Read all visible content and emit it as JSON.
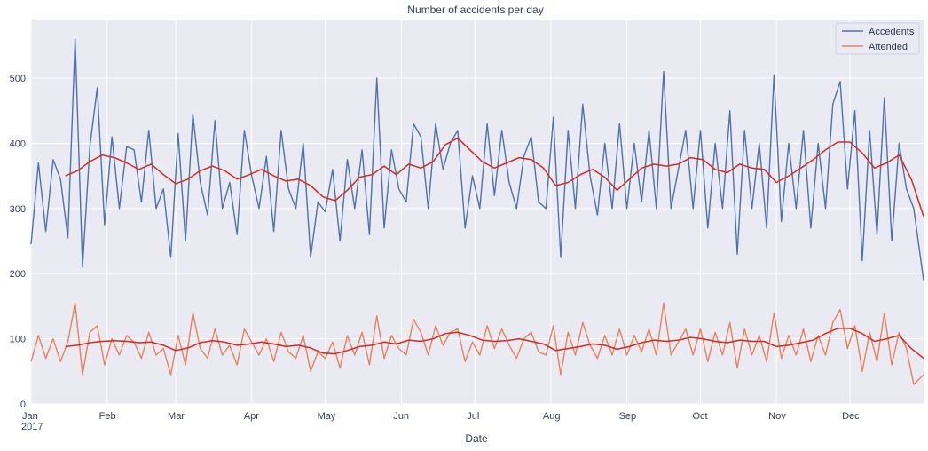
{
  "chart_data": {
    "type": "line",
    "title": "Number of accidents per day",
    "xlabel": "Date",
    "ylabel": "",
    "year_label": "2017",
    "x_tick_labels": [
      "Jan",
      "Feb",
      "Mar",
      "Apr",
      "May",
      "Jun",
      "Jul",
      "Aug",
      "Sep",
      "Oct",
      "Nov",
      "Dec"
    ],
    "x_range": [
      "2017-01-01",
      "2017-12-31"
    ],
    "ylim": [
      0,
      590
    ],
    "y_ticks": [
      0,
      100,
      200,
      300,
      400,
      500
    ],
    "grid": true,
    "legend_position": "top-right",
    "colors": {
      "background": "#eaeaf2",
      "grid": "#ffffff",
      "accidents": "#4c72b0",
      "attended": "#e8825e",
      "rolling": "#d62a1e"
    },
    "series": [
      {
        "name": "Accedents",
        "key": "accidents",
        "x": [
          "2017-01-01",
          "2017-01-04",
          "2017-01-07",
          "2017-01-10",
          "2017-01-13",
          "2017-01-16",
          "2017-01-19",
          "2017-01-22",
          "2017-01-25",
          "2017-01-28",
          "2017-01-31",
          "2017-02-03",
          "2017-02-06",
          "2017-02-09",
          "2017-02-12",
          "2017-02-15",
          "2017-02-18",
          "2017-02-21",
          "2017-02-24",
          "2017-02-27",
          "2017-03-02",
          "2017-03-05",
          "2017-03-08",
          "2017-03-11",
          "2017-03-14",
          "2017-03-17",
          "2017-03-20",
          "2017-03-23",
          "2017-03-26",
          "2017-03-29",
          "2017-04-01",
          "2017-04-04",
          "2017-04-07",
          "2017-04-10",
          "2017-04-13",
          "2017-04-16",
          "2017-04-19",
          "2017-04-22",
          "2017-04-25",
          "2017-04-28",
          "2017-05-01",
          "2017-05-04",
          "2017-05-07",
          "2017-05-10",
          "2017-05-13",
          "2017-05-16",
          "2017-05-19",
          "2017-05-22",
          "2017-05-25",
          "2017-05-28",
          "2017-05-31",
          "2017-06-03",
          "2017-06-06",
          "2017-06-09",
          "2017-06-12",
          "2017-06-15",
          "2017-06-18",
          "2017-06-21",
          "2017-06-24",
          "2017-06-27",
          "2017-06-30",
          "2017-07-03",
          "2017-07-06",
          "2017-07-09",
          "2017-07-12",
          "2017-07-15",
          "2017-07-18",
          "2017-07-21",
          "2017-07-24",
          "2017-07-27",
          "2017-07-30",
          "2017-08-02",
          "2017-08-05",
          "2017-08-08",
          "2017-08-11",
          "2017-08-14",
          "2017-08-17",
          "2017-08-20",
          "2017-08-23",
          "2017-08-26",
          "2017-08-29",
          "2017-09-01",
          "2017-09-04",
          "2017-09-07",
          "2017-09-10",
          "2017-09-13",
          "2017-09-16",
          "2017-09-19",
          "2017-09-22",
          "2017-09-25",
          "2017-09-28",
          "2017-10-01",
          "2017-10-04",
          "2017-10-07",
          "2017-10-10",
          "2017-10-13",
          "2017-10-16",
          "2017-10-19",
          "2017-10-22",
          "2017-10-25",
          "2017-10-28",
          "2017-10-31",
          "2017-11-03",
          "2017-11-06",
          "2017-11-09",
          "2017-11-12",
          "2017-11-15",
          "2017-11-18",
          "2017-11-21",
          "2017-11-24",
          "2017-11-27",
          "2017-11-30",
          "2017-12-03",
          "2017-12-06",
          "2017-12-09",
          "2017-12-12",
          "2017-12-15",
          "2017-12-18",
          "2017-12-21",
          "2017-12-24",
          "2017-12-27",
          "2017-12-31"
        ],
        "values": [
          245,
          370,
          265,
          375,
          345,
          255,
          560,
          210,
          395,
          485,
          275,
          410,
          300,
          395,
          390,
          310,
          420,
          300,
          330,
          225,
          415,
          250,
          445,
          340,
          290,
          435,
          300,
          340,
          260,
          420,
          350,
          300,
          380,
          265,
          420,
          330,
          300,
          400,
          225,
          310,
          295,
          360,
          250,
          375,
          300,
          390,
          260,
          500,
          270,
          390,
          330,
          310,
          430,
          410,
          300,
          430,
          360,
          400,
          420,
          270,
          350,
          300,
          430,
          320,
          420,
          340,
          300,
          380,
          410,
          310,
          300,
          440,
          225,
          420,
          300,
          460,
          350,
          290,
          400,
          300,
          430,
          300,
          400,
          310,
          420,
          300,
          510,
          300,
          360,
          420,
          300,
          420,
          270,
          400,
          300,
          450,
          230,
          420,
          300,
          400,
          270,
          505,
          280,
          400,
          300,
          420,
          270,
          400,
          300,
          460,
          495,
          330,
          450,
          220,
          420,
          260,
          470,
          250,
          400,
          330,
          300,
          190
        ]
      },
      {
        "name": "Attended",
        "key": "attended",
        "x": [
          "2017-01-01",
          "2017-01-04",
          "2017-01-07",
          "2017-01-10",
          "2017-01-13",
          "2017-01-16",
          "2017-01-19",
          "2017-01-22",
          "2017-01-25",
          "2017-01-28",
          "2017-01-31",
          "2017-02-03",
          "2017-02-06",
          "2017-02-09",
          "2017-02-12",
          "2017-02-15",
          "2017-02-18",
          "2017-02-21",
          "2017-02-24",
          "2017-02-27",
          "2017-03-02",
          "2017-03-05",
          "2017-03-08",
          "2017-03-11",
          "2017-03-14",
          "2017-03-17",
          "2017-03-20",
          "2017-03-23",
          "2017-03-26",
          "2017-03-29",
          "2017-04-01",
          "2017-04-04",
          "2017-04-07",
          "2017-04-10",
          "2017-04-13",
          "2017-04-16",
          "2017-04-19",
          "2017-04-22",
          "2017-04-25",
          "2017-04-28",
          "2017-05-01",
          "2017-05-04",
          "2017-05-07",
          "2017-05-10",
          "2017-05-13",
          "2017-05-16",
          "2017-05-19",
          "2017-05-22",
          "2017-05-25",
          "2017-05-28",
          "2017-05-31",
          "2017-06-03",
          "2017-06-06",
          "2017-06-09",
          "2017-06-12",
          "2017-06-15",
          "2017-06-18",
          "2017-06-21",
          "2017-06-24",
          "2017-06-27",
          "2017-06-30",
          "2017-07-03",
          "2017-07-06",
          "2017-07-09",
          "2017-07-12",
          "2017-07-15",
          "2017-07-18",
          "2017-07-21",
          "2017-07-24",
          "2017-07-27",
          "2017-07-30",
          "2017-08-02",
          "2017-08-05",
          "2017-08-08",
          "2017-08-11",
          "2017-08-14",
          "2017-08-17",
          "2017-08-20",
          "2017-08-23",
          "2017-08-26",
          "2017-08-29",
          "2017-09-01",
          "2017-09-04",
          "2017-09-07",
          "2017-09-10",
          "2017-09-13",
          "2017-09-16",
          "2017-09-19",
          "2017-09-22",
          "2017-09-25",
          "2017-09-28",
          "2017-10-01",
          "2017-10-04",
          "2017-10-07",
          "2017-10-10",
          "2017-10-13",
          "2017-10-16",
          "2017-10-19",
          "2017-10-22",
          "2017-10-25",
          "2017-10-28",
          "2017-10-31",
          "2017-11-03",
          "2017-11-06",
          "2017-11-09",
          "2017-11-12",
          "2017-11-15",
          "2017-11-18",
          "2017-11-21",
          "2017-11-24",
          "2017-11-27",
          "2017-11-30",
          "2017-12-03",
          "2017-12-06",
          "2017-12-09",
          "2017-12-12",
          "2017-12-15",
          "2017-12-18",
          "2017-12-21",
          "2017-12-24",
          "2017-12-27",
          "2017-12-31"
        ],
        "values": [
          65,
          105,
          70,
          100,
          65,
          95,
          155,
          45,
          110,
          120,
          60,
          100,
          75,
          105,
          95,
          70,
          110,
          75,
          85,
          45,
          105,
          60,
          140,
          85,
          70,
          115,
          75,
          90,
          60,
          115,
          95,
          75,
          100,
          65,
          110,
          80,
          70,
          105,
          50,
          80,
          70,
          95,
          55,
          105,
          75,
          110,
          60,
          135,
          70,
          105,
          85,
          75,
          130,
          110,
          75,
          120,
          90,
          110,
          115,
          65,
          95,
          75,
          120,
          85,
          115,
          90,
          70,
          100,
          110,
          80,
          75,
          120,
          45,
          110,
          75,
          125,
          90,
          70,
          105,
          75,
          115,
          75,
          105,
          80,
          115,
          75,
          155,
          75,
          95,
          115,
          75,
          115,
          65,
          110,
          75,
          125,
          55,
          115,
          75,
          105,
          65,
          140,
          70,
          105,
          75,
          115,
          65,
          105,
          75,
          125,
          145,
          85,
          120,
          50,
          110,
          65,
          140,
          60,
          110,
          85,
          30,
          45
        ]
      }
    ],
    "rolling_mean": [
      {
        "of": "accidents",
        "x": [
          "2017-01-15",
          "2017-01-20",
          "2017-01-25",
          "2017-01-30",
          "2017-02-04",
          "2017-02-09",
          "2017-02-14",
          "2017-02-19",
          "2017-02-24",
          "2017-03-01",
          "2017-03-06",
          "2017-03-11",
          "2017-03-16",
          "2017-03-21",
          "2017-03-26",
          "2017-03-31",
          "2017-04-05",
          "2017-04-10",
          "2017-04-15",
          "2017-04-20",
          "2017-04-25",
          "2017-04-30",
          "2017-05-05",
          "2017-05-10",
          "2017-05-15",
          "2017-05-20",
          "2017-05-25",
          "2017-05-30",
          "2017-06-04",
          "2017-06-09",
          "2017-06-14",
          "2017-06-19",
          "2017-06-24",
          "2017-06-29",
          "2017-07-04",
          "2017-07-09",
          "2017-07-14",
          "2017-07-19",
          "2017-07-24",
          "2017-07-29",
          "2017-08-03",
          "2017-08-08",
          "2017-08-13",
          "2017-08-18",
          "2017-08-23",
          "2017-08-28",
          "2017-09-02",
          "2017-09-07",
          "2017-09-12",
          "2017-09-17",
          "2017-09-22",
          "2017-09-27",
          "2017-10-02",
          "2017-10-07",
          "2017-10-12",
          "2017-10-17",
          "2017-10-22",
          "2017-10-27",
          "2017-11-01",
          "2017-11-06",
          "2017-11-11",
          "2017-11-16",
          "2017-11-21",
          "2017-11-26",
          "2017-12-01",
          "2017-12-06",
          "2017-12-11",
          "2017-12-16",
          "2017-12-21",
          "2017-12-26",
          "2017-12-31"
        ],
        "values": [
          350,
          358,
          372,
          382,
          378,
          370,
          360,
          368,
          352,
          338,
          345,
          358,
          365,
          358,
          345,
          352,
          360,
          350,
          342,
          345,
          335,
          318,
          312,
          328,
          348,
          352,
          365,
          352,
          368,
          362,
          372,
          398,
          408,
          390,
          372,
          362,
          370,
          378,
          375,
          362,
          335,
          340,
          352,
          360,
          348,
          328,
          345,
          362,
          368,
          365,
          368,
          378,
          375,
          360,
          355,
          368,
          362,
          360,
          340,
          350,
          362,
          375,
          390,
          402,
          402,
          385,
          362,
          370,
          382,
          345,
          288
        ]
      },
      {
        "of": "attended",
        "x": [
          "2017-01-15",
          "2017-01-20",
          "2017-01-25",
          "2017-01-30",
          "2017-02-04",
          "2017-02-09",
          "2017-02-14",
          "2017-02-19",
          "2017-02-24",
          "2017-03-01",
          "2017-03-06",
          "2017-03-11",
          "2017-03-16",
          "2017-03-21",
          "2017-03-26",
          "2017-03-31",
          "2017-04-05",
          "2017-04-10",
          "2017-04-15",
          "2017-04-20",
          "2017-04-25",
          "2017-04-30",
          "2017-05-05",
          "2017-05-10",
          "2017-05-15",
          "2017-05-20",
          "2017-05-25",
          "2017-05-30",
          "2017-06-04",
          "2017-06-09",
          "2017-06-14",
          "2017-06-19",
          "2017-06-24",
          "2017-06-29",
          "2017-07-04",
          "2017-07-09",
          "2017-07-14",
          "2017-07-19",
          "2017-07-24",
          "2017-07-29",
          "2017-08-03",
          "2017-08-08",
          "2017-08-13",
          "2017-08-18",
          "2017-08-23",
          "2017-08-28",
          "2017-09-02",
          "2017-09-07",
          "2017-09-12",
          "2017-09-17",
          "2017-09-22",
          "2017-09-27",
          "2017-10-02",
          "2017-10-07",
          "2017-10-12",
          "2017-10-17",
          "2017-10-22",
          "2017-10-27",
          "2017-11-01",
          "2017-11-06",
          "2017-11-11",
          "2017-11-16",
          "2017-11-21",
          "2017-11-26",
          "2017-12-01",
          "2017-12-06",
          "2017-12-11",
          "2017-12-16",
          "2017-12-21",
          "2017-12-26",
          "2017-12-31"
        ],
        "values": [
          88,
          90,
          94,
          96,
          97,
          96,
          94,
          95,
          90,
          82,
          86,
          94,
          97,
          95,
          90,
          92,
          95,
          92,
          88,
          90,
          86,
          78,
          77,
          82,
          88,
          90,
          95,
          92,
          98,
          96,
          100,
          108,
          110,
          105,
          98,
          96,
          97,
          100,
          96,
          92,
          82,
          85,
          88,
          92,
          90,
          84,
          88,
          94,
          98,
          96,
          98,
          102,
          100,
          96,
          94,
          98,
          96,
          96,
          88,
          90,
          94,
          98,
          108,
          116,
          116,
          108,
          96,
          100,
          105,
          85,
          70
        ]
      }
    ]
  }
}
